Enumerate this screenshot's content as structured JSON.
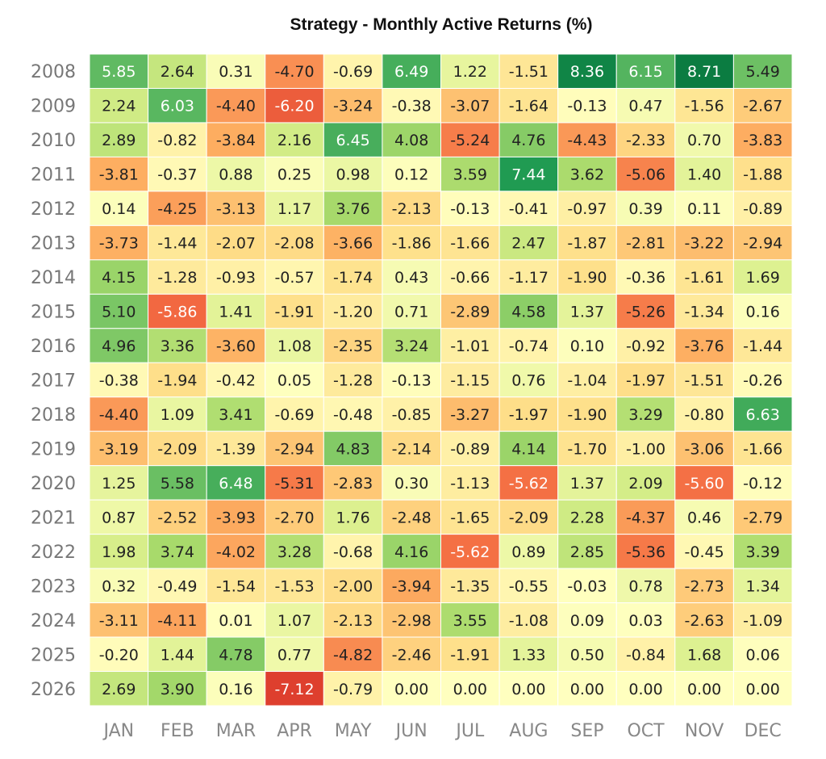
{
  "chart_data": {
    "type": "heatmap",
    "title": "Strategy - Monthly Active Returns (%)",
    "xlabel": "",
    "ylabel": "",
    "columns": [
      "JAN",
      "FEB",
      "MAR",
      "APR",
      "MAY",
      "JUN",
      "JUL",
      "AUG",
      "SEP",
      "OCT",
      "NOV",
      "DEC"
    ],
    "rows": [
      "2008",
      "2009",
      "2010",
      "2011",
      "2012",
      "2013",
      "2014",
      "2015",
      "2016",
      "2017",
      "2018",
      "2019",
      "2020",
      "2021",
      "2022",
      "2023",
      "2024",
      "2025",
      "2026"
    ],
    "values": [
      [
        5.85,
        2.64,
        0.31,
        -4.7,
        -0.69,
        6.49,
        1.22,
        -1.51,
        8.36,
        6.15,
        8.71,
        5.49
      ],
      [
        2.24,
        6.03,
        -4.4,
        -6.2,
        -3.24,
        -0.38,
        -3.07,
        -1.64,
        -0.13,
        0.47,
        -1.56,
        -2.67
      ],
      [
        2.89,
        -0.82,
        -3.84,
        2.16,
        6.45,
        4.08,
        -5.24,
        4.76,
        -4.43,
        -2.33,
        0.7,
        -3.83
      ],
      [
        -3.81,
        -0.37,
        0.88,
        0.25,
        0.98,
        0.12,
        3.59,
        7.44,
        3.62,
        -5.06,
        1.4,
        -1.88
      ],
      [
        0.14,
        -4.25,
        -3.13,
        1.17,
        3.76,
        -2.13,
        -0.13,
        -0.41,
        -0.97,
        0.39,
        0.11,
        -0.89
      ],
      [
        -3.73,
        -1.44,
        -2.07,
        -2.08,
        -3.66,
        -1.86,
        -1.66,
        2.47,
        -1.87,
        -2.81,
        -3.22,
        -2.94
      ],
      [
        4.15,
        -1.28,
        -0.93,
        -0.57,
        -1.74,
        0.43,
        -0.66,
        -1.17,
        -1.9,
        -0.36,
        -1.61,
        1.69
      ],
      [
        5.1,
        -5.86,
        1.41,
        -1.91,
        -1.2,
        0.71,
        -2.89,
        4.58,
        1.37,
        -5.26,
        -1.34,
        0.16
      ],
      [
        4.96,
        3.36,
        -3.6,
        1.08,
        -2.35,
        3.24,
        -1.01,
        -0.74,
        0.1,
        -0.92,
        -3.76,
        -1.44
      ],
      [
        -0.38,
        -1.94,
        -0.42,
        0.05,
        -1.28,
        -0.13,
        -1.15,
        0.76,
        -1.04,
        -1.97,
        -1.51,
        -0.26
      ],
      [
        -4.4,
        1.09,
        3.41,
        -0.69,
        -0.48,
        -0.85,
        -3.27,
        -1.97,
        -1.9,
        3.29,
        -0.8,
        6.63
      ],
      [
        -3.19,
        -2.09,
        -1.39,
        -2.94,
        4.83,
        -2.14,
        -0.89,
        4.14,
        -1.7,
        -1.0,
        -3.06,
        -1.66
      ],
      [
        1.25,
        5.58,
        6.48,
        -5.31,
        -2.83,
        0.3,
        -1.13,
        -5.62,
        1.37,
        2.09,
        -5.6,
        -0.12
      ],
      [
        0.87,
        -2.52,
        -3.93,
        -2.7,
        1.76,
        -2.48,
        -1.65,
        -2.09,
        2.28,
        -4.37,
        0.46,
        -2.79
      ],
      [
        1.98,
        3.74,
        -4.02,
        3.28,
        -0.68,
        4.16,
        -5.62,
        0.89,
        2.85,
        -5.36,
        -0.45,
        3.39
      ],
      [
        0.32,
        -0.49,
        -1.54,
        -1.53,
        -2.0,
        -3.94,
        -1.35,
        -0.55,
        -0.03,
        0.78,
        -2.73,
        1.34
      ],
      [
        -3.11,
        -4.11,
        0.01,
        1.07,
        -2.13,
        -2.98,
        3.55,
        -1.08,
        0.09,
        0.03,
        -2.63,
        -1.09
      ],
      [
        -0.2,
        1.44,
        4.78,
        0.77,
        -4.82,
        -2.46,
        -1.91,
        1.33,
        0.5,
        -0.84,
        1.68,
        0.06
      ],
      [
        2.69,
        3.9,
        0.16,
        -7.12,
        -0.79,
        0.0,
        0.0,
        0.0,
        0.0,
        0.0,
        0.0,
        0.0
      ]
    ],
    "colormap": "RdYlGn",
    "grid": false,
    "legend": "none"
  }
}
